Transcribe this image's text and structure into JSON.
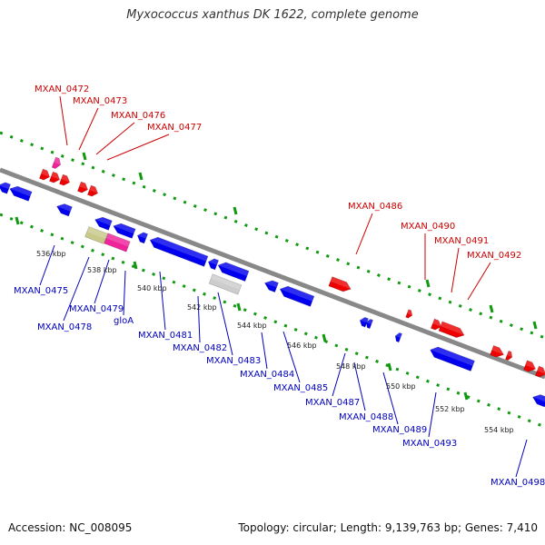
{
  "title": "Myxococcus xanthus DK 1622, complete genome",
  "footer": {
    "accession": "Accession: NC_008095",
    "stats": "Topology: circular; Length: 9,139,763 bp; Genes: 7,410"
  },
  "colors": {
    "forward_gene": "#ee0000",
    "reverse_gene": "#0000ee",
    "rna_gene": "#ee2299",
    "pseudo_gene": "#c8c88a",
    "other_feature": "#cccccc",
    "backbone": "#888888",
    "gc_dots": "#119911",
    "forward_label": "#cc0000",
    "reverse_label": "#0000bb"
  },
  "kbp_ticks": [
    "536 kbp",
    "538 kbp",
    "540 kbp",
    "542 kbp",
    "544 kbp",
    "546 kbp",
    "548 kbp",
    "550 kbp",
    "552 kbp",
    "554 kbp"
  ],
  "forward_labels": [
    "MXAN_0472",
    "MXAN_0473",
    "MXAN_0476",
    "MXAN_0477",
    "MXAN_0486",
    "MXAN_0490",
    "MXAN_0491",
    "MXAN_0492"
  ],
  "reverse_labels": [
    "MXAN_0475",
    "MXAN_0478",
    "MXAN_0479",
    "gloA",
    "MXAN_0481",
    "MXAN_0482",
    "MXAN_0483",
    "MXAN_0484",
    "MXAN_0485",
    "MXAN_0487",
    "MXAN_0488",
    "MXAN_0489",
    "MXAN_0493",
    "MXAN_0498"
  ]
}
